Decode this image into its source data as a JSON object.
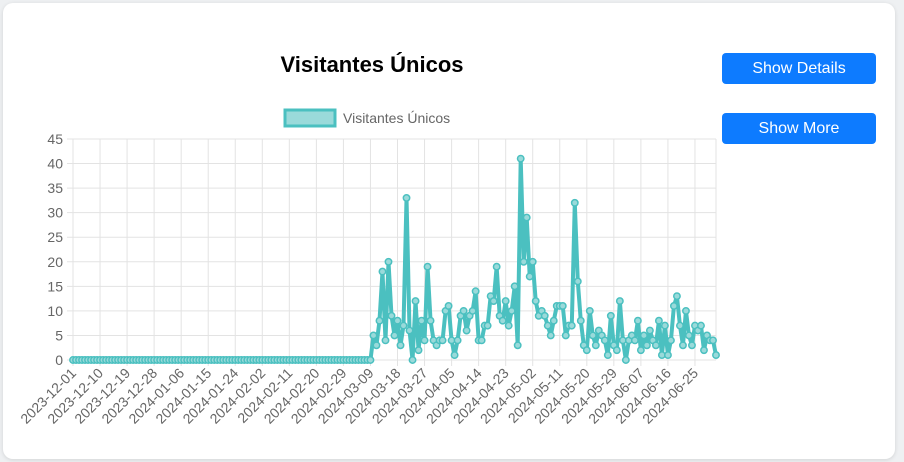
{
  "chart_data": {
    "type": "line",
    "title": "Visitantes Únicos",
    "legend": {
      "position": "top",
      "label": "Visitantes Únicos"
    },
    "series": [
      {
        "name": "Visitantes Únicos",
        "color": "#4bc0c0",
        "fill": "#9adada",
        "start_date": "2023-12-01",
        "values": [
          0,
          0,
          0,
          0,
          0,
          0,
          0,
          0,
          0,
          0,
          0,
          0,
          0,
          0,
          0,
          0,
          0,
          0,
          0,
          0,
          0,
          0,
          0,
          0,
          0,
          0,
          0,
          0,
          0,
          0,
          0,
          0,
          0,
          0,
          0,
          0,
          0,
          0,
          0,
          0,
          0,
          0,
          0,
          0,
          0,
          0,
          0,
          0,
          0,
          0,
          0,
          0,
          0,
          0,
          0,
          0,
          0,
          0,
          0,
          0,
          0,
          0,
          0,
          0,
          0,
          0,
          0,
          0,
          0,
          0,
          0,
          0,
          0,
          0,
          0,
          0,
          0,
          0,
          0,
          0,
          0,
          0,
          0,
          0,
          0,
          0,
          0,
          0,
          0,
          0,
          0,
          0,
          0,
          0,
          0,
          0,
          0,
          0,
          0,
          0,
          5,
          3,
          8,
          18,
          4,
          20,
          9,
          5,
          8,
          3,
          7,
          33,
          6,
          0,
          12,
          2,
          8,
          4,
          19,
          8,
          4,
          3,
          4,
          4,
          10,
          11,
          4,
          1,
          4,
          9,
          10,
          6,
          9,
          10,
          14,
          4,
          4,
          7,
          7,
          13,
          12,
          19,
          9,
          8,
          12,
          7,
          10,
          15,
          3,
          41,
          20,
          29,
          17,
          20,
          12,
          9,
          10,
          9,
          7,
          5,
          8,
          11,
          11,
          11,
          5,
          7,
          7,
          32,
          16,
          8,
          3,
          2,
          10,
          5,
          3,
          6,
          5,
          4,
          1,
          9,
          3,
          2,
          12,
          4,
          0,
          4,
          5,
          4,
          8,
          2,
          5,
          3,
          6,
          4,
          3,
          8,
          1,
          7,
          1,
          4,
          11,
          13,
          7,
          3,
          10,
          5,
          3,
          7,
          6,
          7,
          2,
          5,
          4,
          4,
          1
        ]
      }
    ],
    "x_tick_labels": [
      "2023-12-01",
      "2023-12-10",
      "2023-12-19",
      "2023-12-28",
      "2024-01-06",
      "2024-01-15",
      "2024-01-24",
      "2024-02-02",
      "2024-02-11",
      "2024-02-20",
      "2024-02-29",
      "2024-03-09",
      "2024-03-18",
      "2024-03-27",
      "2024-04-05",
      "2024-04-14",
      "2024-04-23",
      "2024-05-02",
      "2024-05-11",
      "2024-05-20",
      "2024-05-29",
      "2024-06-07",
      "2024-06-16",
      "2024-06-25"
    ],
    "y_ticks": [
      0,
      5,
      10,
      15,
      20,
      25,
      30,
      35,
      40,
      45
    ],
    "ylim": [
      0,
      45
    ],
    "grid": true
  },
  "buttons": {
    "details_label": "Show Details",
    "more_label": "Show More"
  }
}
